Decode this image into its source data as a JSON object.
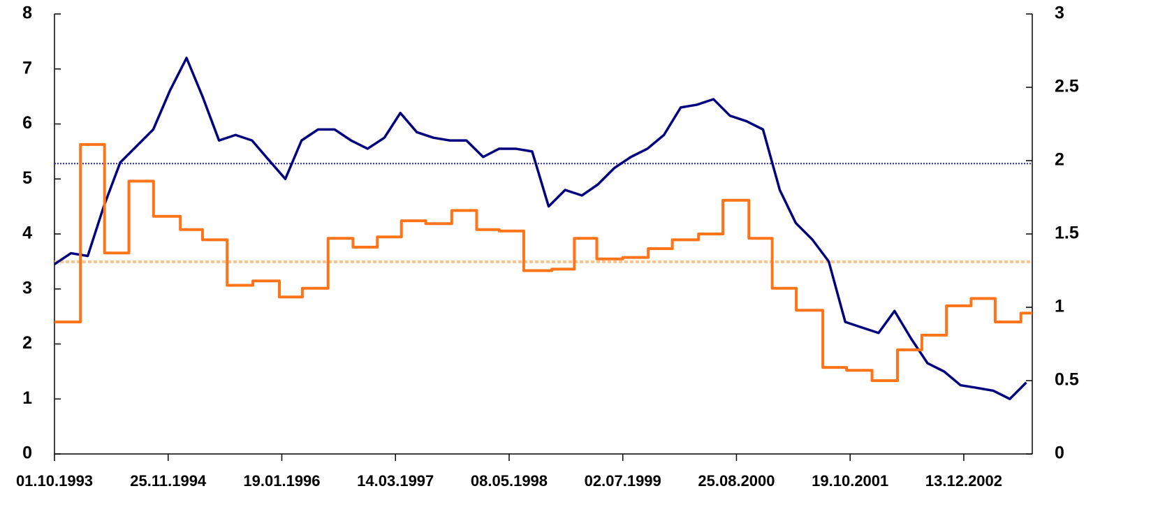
{
  "chart_data": {
    "type": "line",
    "xlim": [
      "01.10.1993",
      "23.08.2003"
    ],
    "xticks": [
      "01.10.1993",
      "25.11.1994",
      "19.01.1996",
      "14.03.1997",
      "08.05.1998",
      "02.07.1999",
      "25.08.2000",
      "19.10.2001",
      "13.12.2002"
    ],
    "ylim": [
      0,
      8
    ],
    "yticks": [
      0,
      1,
      2,
      3,
      4,
      5,
      6,
      7,
      8
    ],
    "y2lim": [
      0,
      3
    ],
    "y2ticks": [
      0,
      0.5,
      1,
      1.5,
      2,
      2.5,
      3
    ],
    "series": [
      {
        "color": "#00007f",
        "axis": "y",
        "step": false,
        "x": [
          "01.10.1993",
          "01.12.1993",
          "01.02.1994",
          "01.04.1994",
          "01.06.1994",
          "01.08.1994",
          "01.10.1994",
          "01.12.1994",
          "01.02.1995",
          "01.04.1995",
          "01.06.1995",
          "01.08.1995",
          "01.10.1995",
          "01.12.1995",
          "01.02.1996",
          "01.04.1996",
          "01.06.1996",
          "01.08.1996",
          "01.10.1996",
          "01.12.1996",
          "01.02.1997",
          "01.04.1997",
          "01.06.1997",
          "01.08.1997",
          "01.10.1997",
          "01.12.1997",
          "01.02.1998",
          "01.04.1998",
          "01.06.1998",
          "01.08.1998",
          "01.10.1998",
          "01.12.1998",
          "01.02.1999",
          "01.04.1999",
          "01.06.1999",
          "01.08.1999",
          "01.10.1999",
          "01.12.1999",
          "01.02.2000",
          "01.04.2000",
          "01.06.2000",
          "01.08.2000",
          "01.10.2000",
          "01.12.2000",
          "01.02.2001",
          "01.04.2001",
          "01.06.2001",
          "01.08.2001",
          "01.10.2001",
          "01.12.2001",
          "01.02.2002",
          "01.04.2002",
          "01.06.2002",
          "01.08.2002",
          "01.10.2002",
          "01.12.2002",
          "01.02.2003",
          "01.04.2003",
          "01.06.2003",
          "01.08.2003"
        ],
        "values": [
          3.45,
          3.65,
          3.6,
          4.5,
          5.3,
          5.6,
          5.9,
          6.6,
          7.2,
          6.5,
          5.7,
          5.8,
          5.7,
          5.35,
          5.0,
          5.7,
          5.9,
          5.9,
          5.7,
          5.55,
          5.75,
          6.2,
          5.85,
          5.75,
          5.7,
          5.7,
          5.4,
          5.55,
          5.55,
          5.5,
          4.5,
          4.8,
          4.7,
          4.9,
          5.2,
          5.4,
          5.55,
          5.8,
          6.3,
          6.35,
          6.45,
          6.15,
          6.05,
          5.9,
          4.8,
          4.2,
          3.9,
          3.5,
          2.4,
          2.3,
          2.2,
          2.6,
          2.1,
          1.65,
          1.5,
          1.25,
          1.2,
          1.15,
          1.0,
          1.3
        ]
      },
      {
        "color": "#ff7418",
        "axis": "y2",
        "step": true,
        "x": [
          "01.10.1993",
          "05.01.1994",
          "04.04.1994",
          "03.07.1994",
          "02.10.1994",
          "09.01.1995",
          "01.04.1995",
          "01.07.1995",
          "04.10.1995",
          "10.01.1996",
          "04.04.1996",
          "08.07.1996",
          "08.10.1996",
          "06.01.1997",
          "05.04.1997",
          "04.07.1997",
          "08.10.1997",
          "08.01.1998",
          "01.04.1998",
          "01.07.1998",
          "13.10.1998",
          "04.01.1999",
          "28.03.1999",
          "02.07.1999",
          "04.10.1999",
          "01.01.2000",
          "07.04.2000",
          "06.07.2000",
          "10.10.2000",
          "04.01.2001",
          "03.04.2001",
          "10.07.2001",
          "06.10.2001",
          "08.01.2002",
          "12.04.2002",
          "11.07.2002",
          "10.10.2002",
          "09.01.2003",
          "08.04.2003",
          "12.07.2003"
        ],
        "values": [
          0.9,
          2.11,
          1.37,
          1.86,
          1.62,
          1.53,
          1.46,
          1.15,
          1.18,
          1.07,
          1.13,
          1.47,
          1.41,
          1.48,
          1.59,
          1.57,
          1.66,
          1.53,
          1.52,
          1.25,
          1.26,
          1.47,
          1.33,
          1.34,
          1.4,
          1.46,
          1.5,
          1.73,
          1.47,
          1.13,
          0.98,
          0.59,
          0.57,
          0.5,
          0.71,
          0.81,
          1.01,
          1.06,
          0.9,
          0.96
        ]
      }
    ],
    "reference_lines": [
      {
        "axis": "y",
        "value": 5.28,
        "color": "#2a2a9a"
      },
      {
        "axis": "y2",
        "value": 1.31,
        "color": "#fcc48c"
      }
    ]
  }
}
